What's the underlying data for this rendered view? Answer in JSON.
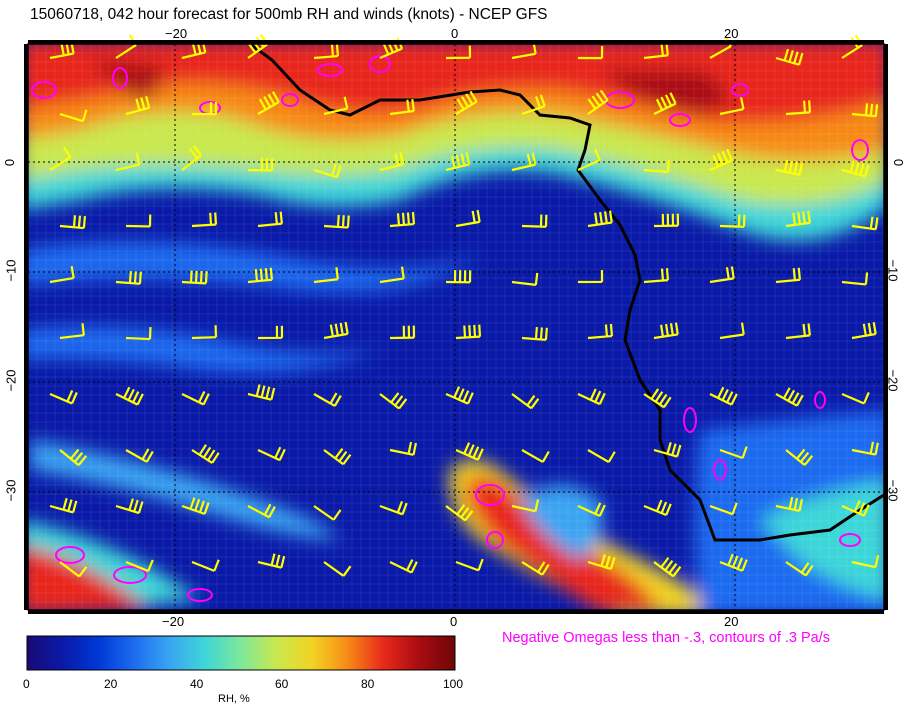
{
  "title": "15060718, 042 hour forecast for 500mb RH and winds (knots) - NCEP GFS",
  "note": "Negative Omegas less than -.3, contours of .3 Pa/s",
  "map": {
    "lon_ticks": [
      "−20",
      "0",
      "20"
    ],
    "lat_ticks": [
      "0",
      "−10",
      "−20",
      "−30"
    ]
  },
  "colorbar": {
    "label": "RH, %",
    "ticks": [
      "0",
      "20",
      "40",
      "60",
      "80",
      "100"
    ],
    "colors": [
      "#1a0a75",
      "#0a1aa8",
      "#0038d6",
      "#1c6bf0",
      "#3aa5f2",
      "#3ed6d8",
      "#7ee89a",
      "#c9e84e",
      "#f2d322",
      "#f78a18",
      "#e8281a",
      "#a80c12",
      "#6e0608"
    ]
  },
  "colors": {
    "contour": "#ff00ff",
    "wind_barb": "#ffff00",
    "coastline": "#000000",
    "grid": "#000000"
  }
}
